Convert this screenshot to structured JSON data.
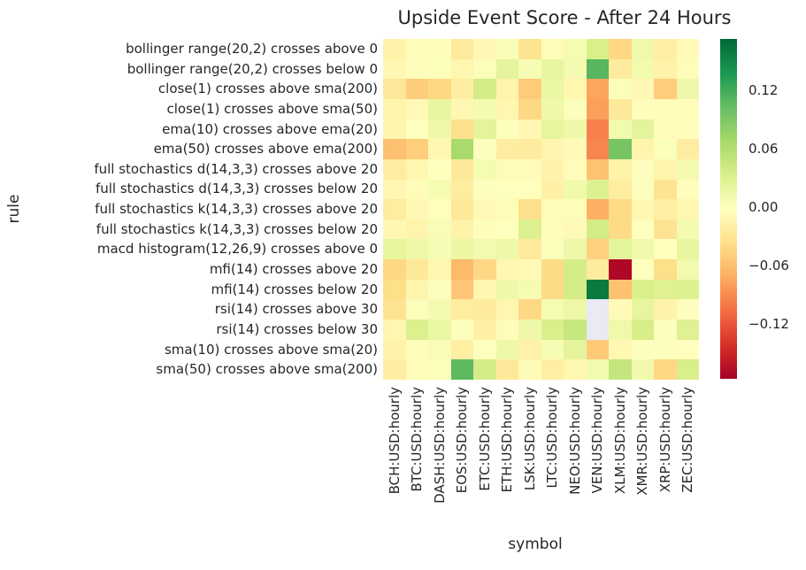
{
  "chart_data": {
    "type": "heatmap",
    "title": "Upside Event Score - After 24 Hours",
    "xlabel": "symbol",
    "ylabel": "rule",
    "colormap": "RdYlGn",
    "vmin": -0.176,
    "vmax": 0.173,
    "nan_color": "#e9eaf3",
    "legend_position": "right colorbar",
    "grid": false,
    "colormap_anchors": [
      [
        0.0,
        "#a50026"
      ],
      [
        0.1,
        "#d73027"
      ],
      [
        0.2,
        "#f46d43"
      ],
      [
        0.3,
        "#fdae61"
      ],
      [
        0.4,
        "#fee08b"
      ],
      [
        0.5,
        "#ffffbf"
      ],
      [
        0.6,
        "#d9ef8b"
      ],
      [
        0.7,
        "#a6d96a"
      ],
      [
        0.8,
        "#66bd63"
      ],
      [
        0.9,
        "#1a9850"
      ],
      [
        1.0,
        "#006837"
      ]
    ],
    "colorbar_ticks": [
      {
        "value": 0.12,
        "label": "0.12"
      },
      {
        "value": 0.06,
        "label": "0.06"
      },
      {
        "value": 0.0,
        "label": "0.00"
      },
      {
        "value": -0.06,
        "label": "−0.06"
      },
      {
        "value": -0.12,
        "label": "−0.12"
      }
    ],
    "columns": [
      "BCH:USD:hourly",
      "BTC:USD:hourly",
      "DASH:USD:hourly",
      "EOS:USD:hourly",
      "ETC:USD:hourly",
      "ETH:USD:hourly",
      "LSK:USD:hourly",
      "LTC:USD:hourly",
      "NEO:USD:hourly",
      "VEN:USD:hourly",
      "XLM:USD:hourly",
      "XMR:USD:hourly",
      "XRP:USD:hourly",
      "ZEC:USD:hourly"
    ],
    "rows": [
      "bollinger range(20,2) crosses above 0",
      "bollinger range(20,2) crosses below 0",
      "close(1) crosses above sma(200)",
      "close(1) crosses above sma(50)",
      "ema(10) crosses above ema(20)",
      "ema(50) crosses above ema(200)",
      "full stochastics d(14,3,3) crosses above 20",
      "full stochastics d(14,3,3) crosses below 20",
      "full stochastics k(14,3,3) crosses above 20",
      "full stochastics k(14,3,3) crosses below 20",
      "macd histogram(12,26,9) crosses above 0",
      "mfi(14) crosses above 20",
      "mfi(14) crosses below 20",
      "rsi(14) crosses above 30",
      "rsi(14) crosses below 30",
      "sma(10) crosses above sma(20)",
      "sma(50) crosses above sma(200)"
    ],
    "values": [
      [
        -0.016,
        -0.005,
        -0.004,
        -0.025,
        -0.009,
        0.003,
        -0.033,
        -0.006,
        0.007,
        0.034,
        -0.043,
        0.012,
        -0.019,
        -0.007
      ],
      [
        -0.01,
        -0.004,
        0.001,
        -0.012,
        0.002,
        0.022,
        0.006,
        0.019,
        0.009,
        0.11,
        -0.024,
        0.01,
        -0.017,
        -0.005
      ],
      [
        -0.028,
        -0.05,
        -0.043,
        -0.021,
        0.037,
        -0.014,
        -0.051,
        0.017,
        -0.012,
        -0.076,
        0.002,
        -0.009,
        -0.049,
        0.014
      ],
      [
        -0.014,
        -0.008,
        0.019,
        -0.01,
        0.009,
        -0.012,
        -0.041,
        0.014,
        0.001,
        -0.079,
        -0.027,
        -0.004,
        -0.005,
        -0.005
      ],
      [
        -0.014,
        -0.002,
        0.013,
        -0.035,
        0.023,
        0.001,
        -0.011,
        0.021,
        0.013,
        -0.096,
        0.01,
        0.022,
        -0.005,
        -0.004
      ],
      [
        -0.059,
        -0.049,
        -0.011,
        0.066,
        0.0,
        -0.022,
        -0.024,
        -0.013,
        -0.007,
        -0.093,
        0.094,
        -0.014,
        0.001,
        -0.022
      ],
      [
        -0.022,
        -0.012,
        -0.002,
        -0.026,
        0.008,
        -0.005,
        -0.006,
        -0.015,
        -0.005,
        -0.057,
        -0.016,
        0.0,
        -0.014,
        0.009
      ],
      [
        -0.011,
        -0.005,
        0.008,
        -0.022,
        0.0,
        -0.001,
        -0.003,
        -0.018,
        0.011,
        0.029,
        -0.023,
        0.0,
        -0.032,
        -0.004
      ],
      [
        -0.023,
        -0.009,
        -0.003,
        -0.027,
        -0.008,
        -0.005,
        -0.035,
        -0.006,
        -0.005,
        -0.07,
        -0.04,
        -0.01,
        -0.02,
        -0.012
      ],
      [
        -0.01,
        -0.014,
        0.004,
        -0.016,
        -0.004,
        -0.001,
        0.03,
        -0.004,
        -0.007,
        0.038,
        -0.04,
        -0.001,
        -0.032,
        0.009
      ],
      [
        0.021,
        0.013,
        0.006,
        0.017,
        0.01,
        0.013,
        -0.025,
        0.002,
        0.014,
        -0.047,
        0.023,
        0.011,
        -0.003,
        0.019
      ],
      [
        -0.041,
        -0.026,
        -0.012,
        -0.063,
        -0.042,
        -0.01,
        -0.008,
        -0.04,
        0.036,
        -0.024,
        -0.17,
        -0.001,
        -0.037,
        0.01
      ],
      [
        -0.037,
        -0.014,
        0.0,
        -0.055,
        -0.012,
        0.013,
        0.008,
        -0.04,
        0.036,
        0.16,
        -0.058,
        0.032,
        0.028,
        0.03
      ],
      [
        -0.032,
        0.002,
        0.009,
        -0.023,
        -0.024,
        -0.012,
        -0.042,
        0.008,
        0.015,
        null,
        -0.007,
        0.02,
        -0.015,
        0.0
      ],
      [
        -0.012,
        0.031,
        0.017,
        0.001,
        -0.018,
        -0.006,
        0.013,
        0.033,
        0.046,
        null,
        0.012,
        0.035,
        0.0,
        0.028
      ],
      [
        -0.016,
        -0.004,
        0.004,
        -0.02,
        -0.001,
        0.013,
        -0.017,
        0.006,
        0.022,
        -0.052,
        -0.01,
        0.0,
        0.0,
        -0.003
      ],
      [
        -0.021,
        -0.006,
        0.002,
        0.107,
        0.036,
        -0.026,
        -0.007,
        -0.02,
        -0.012,
        0.01,
        0.047,
        0.011,
        -0.042,
        0.033
      ]
    ]
  }
}
